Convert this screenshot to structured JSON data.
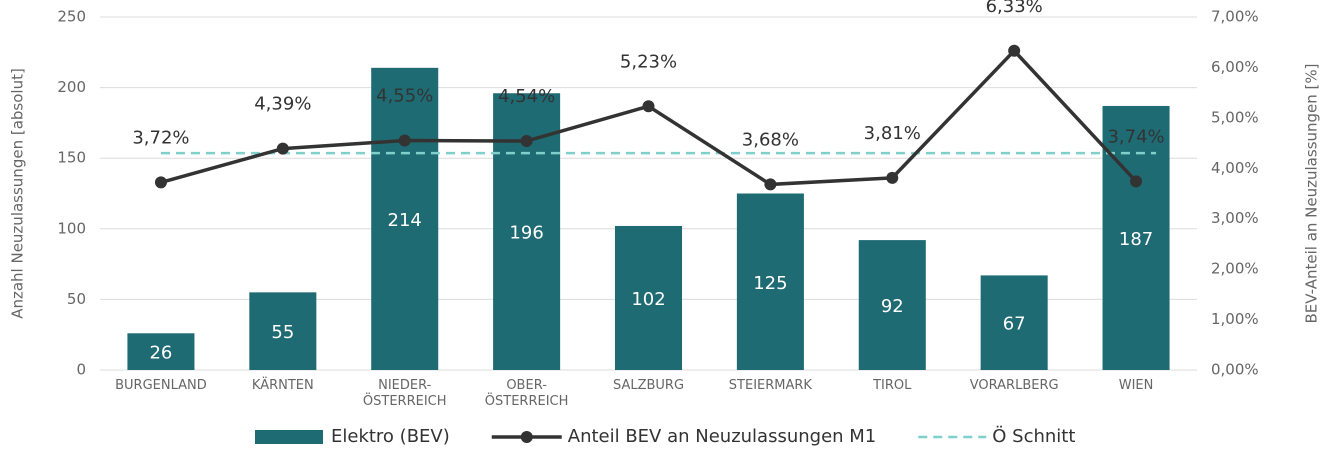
{
  "chart_data": {
    "type": "combo",
    "categories": [
      "BURGENLAND",
      "KÄRNTEN",
      "NIEDER-\nÖSTERREICH",
      "OBER-\nÖSTERREICH",
      "SALZBURG",
      "STEIERMARK",
      "TIROL",
      "VORARLBERG",
      "WIEN"
    ],
    "series": [
      {
        "name": "Elektro (BEV)",
        "type": "bar",
        "color": "#1f6b73",
        "values": [
          26,
          55,
          214,
          196,
          102,
          125,
          92,
          67,
          187
        ]
      },
      {
        "name": "Anteil BEV an Neuzulassungen M1",
        "type": "line",
        "axis": "y2",
        "color": "#333333",
        "values": [
          3.72,
          4.39,
          4.55,
          4.54,
          5.23,
          3.68,
          3.81,
          6.33,
          3.74
        ],
        "value_labels": [
          "3,72%",
          "4,39%",
          "4,55%",
          "4,54%",
          "5,23%",
          "3,68%",
          "3,81%",
          "6,33%",
          "3,74%"
        ]
      }
    ],
    "reference_lines": [
      {
        "name": "Ö Schnitt",
        "value": 4.3,
        "axis": "y2",
        "color": "#7fcfca",
        "dashed": true
      }
    ],
    "ylabel": "Anzahl Neuzulassungen [absolut]",
    "y2label": "BEV-Anteil an Neuzulassungen [%]",
    "ylim": [
      0,
      250
    ],
    "yticks": [
      0,
      50,
      100,
      150,
      200,
      250
    ],
    "y2lim": [
      0,
      7
    ],
    "y2ticks": [
      {
        "value": 0,
        "label": "0,00%"
      },
      {
        "value": 1,
        "label": "1,00%"
      },
      {
        "value": 2,
        "label": "2,00%"
      },
      {
        "value": 3,
        "label": "3,00%"
      },
      {
        "value": 4,
        "label": "4,00%"
      },
      {
        "value": 5,
        "label": "5,00%"
      },
      {
        "value": 6,
        "label": "6,00%"
      },
      {
        "value": 7,
        "label": "7,00%"
      }
    ],
    "grid": true,
    "legend": "bottom"
  }
}
